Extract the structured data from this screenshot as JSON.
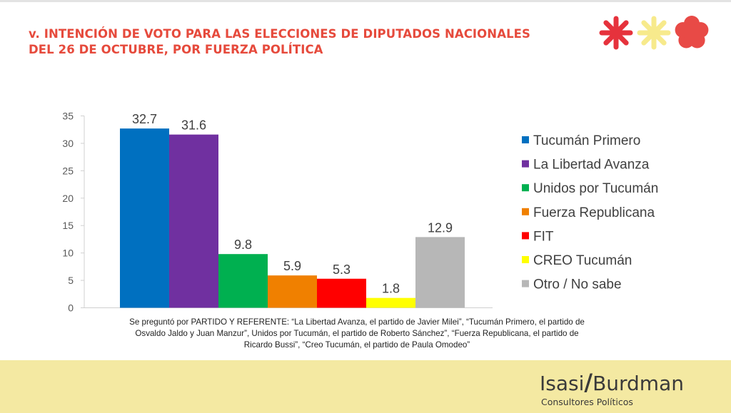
{
  "title": {
    "line1": "v. INTENCIÓN DE VOTO PARA LAS ELECCIONES DE DIPUTADOS NACIONALES",
    "line2": "DEL 26 DE OCTUBRE, POR FUERZA POLÍTICA"
  },
  "colors": {
    "title": "#e64a3c",
    "bottom_band": "#f4e9a2",
    "icon_red": "#e6323c",
    "icon_yellow": "#f7ea8c",
    "icon_coral": "#e84a46"
  },
  "icons": [
    "asterisk-red-icon",
    "asterisk-yellow-icon",
    "flower-coral-icon"
  ],
  "chart_data": {
    "type": "bar",
    "categories": [
      "Tucumán Primero",
      "La Libertad Avanza",
      "Unidos por Tucumán",
      "Fuerza Republicana",
      "FIT",
      "CREO Tucumán",
      "Otro / No sabe"
    ],
    "values": [
      32.7,
      31.6,
      9.8,
      5.9,
      5.3,
      1.8,
      12.9
    ],
    "data_labels": [
      "32.7",
      "31.6",
      "9.8",
      "5.9",
      "5.3",
      "1.8",
      "12.9"
    ],
    "colors": [
      "#0070c0",
      "#7030a0",
      "#00b050",
      "#f08000",
      "#ff0000",
      "#ffff00",
      "#b7b7b7"
    ],
    "ylim": [
      0,
      35
    ],
    "yticks": [
      "0",
      "5",
      "10",
      "15",
      "20",
      "25",
      "30",
      "35"
    ],
    "title": "",
    "xlabel": "",
    "ylabel": "",
    "grid": false,
    "legend_position": "right"
  },
  "footnote": {
    "line1": "Se preguntó por PARTIDO Y REFERENTE: “La Libertad Avanza, el partido de Javier Milei”, “Tucumán Primero, el partido de",
    "line2": "Osvaldo Jaldo y Juan Manzur”, Unidos por Tucumán, el partido de Roberto Sánchez”, “Fuerza Republicana, el partido de",
    "line3": "Ricardo Bussi”, “Creo Tucumán, el partido de Paula Omodeo”"
  },
  "logo": {
    "left": "Isasi",
    "slash": "/",
    "right": "Burdman",
    "subtitle": "Consultores Políticos"
  }
}
